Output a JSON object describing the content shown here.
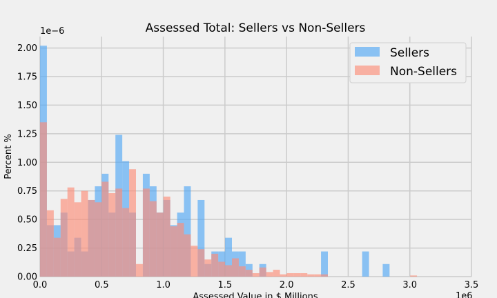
{
  "chart_data": {
    "type": "histogram",
    "title": "Assessed Total: Sellers vs Non-Sellers",
    "xlabel": "Assessed Value in $ Millions",
    "ylabel": "Percent %",
    "x_offset_label": "1e6",
    "y_offset_label": "1e−6",
    "xlim": [
      0,
      3.5
    ],
    "ylim": [
      0,
      2.1
    ],
    "grid": true,
    "legend_position": "top-right",
    "x_ticks": [
      "0.0",
      "0.5",
      "1.0",
      "1.5",
      "2.0",
      "2.5",
      "3.0",
      "3.5"
    ],
    "y_ticks": [
      "0.00",
      "0.25",
      "0.50",
      "0.75",
      "1.00",
      "1.25",
      "1.50",
      "1.75",
      "2.00"
    ],
    "series": [
      {
        "name": "Sellers",
        "color": "#52a7f5",
        "opacity": 0.65,
        "bin_start": 0.0,
        "bin_width": 0.0556,
        "counts": [
          2.02,
          0.45,
          0.45,
          0.56,
          0.22,
          0.34,
          0.22,
          0.67,
          0.79,
          0.9,
          0.56,
          1.24,
          1.01,
          0.56,
          0.0,
          0.9,
          0.79,
          0.56,
          0.67,
          0.45,
          0.56,
          0.79,
          0.0,
          0.67,
          0.11,
          0.22,
          0.22,
          0.34,
          0.22,
          0.22,
          0.11,
          0.0,
          0.11,
          0.0,
          0.0,
          0.0,
          0.0,
          0.0,
          0.0,
          0.0,
          0.0,
          0.22,
          0.0,
          0.0,
          0.0,
          0.0,
          0.0,
          0.22,
          0.0,
          0.0,
          0.11,
          0.0,
          0.0,
          0.0,
          0.0
        ]
      },
      {
        "name": "Non-Sellers",
        "color": "#fc8e78",
        "opacity": 0.65,
        "bin_start": 0.0,
        "bin_width": 0.0556,
        "counts": [
          1.35,
          0.58,
          0.34,
          0.68,
          0.78,
          0.65,
          0.75,
          0.67,
          0.65,
          0.83,
          0.73,
          0.77,
          0.6,
          0.94,
          0.11,
          0.77,
          0.66,
          0.56,
          0.7,
          0.44,
          0.47,
          0.37,
          0.27,
          0.24,
          0.15,
          0.2,
          0.13,
          0.1,
          0.16,
          0.09,
          0.06,
          0.03,
          0.08,
          0.04,
          0.06,
          0.02,
          0.03,
          0.03,
          0.03,
          0.02,
          0.02,
          0.02,
          0.0,
          0.0,
          0.0,
          0.0,
          0.0,
          0.0,
          0.0,
          0.0,
          0.0,
          0.0,
          0.0,
          0.0,
          0.01
        ]
      }
    ]
  }
}
